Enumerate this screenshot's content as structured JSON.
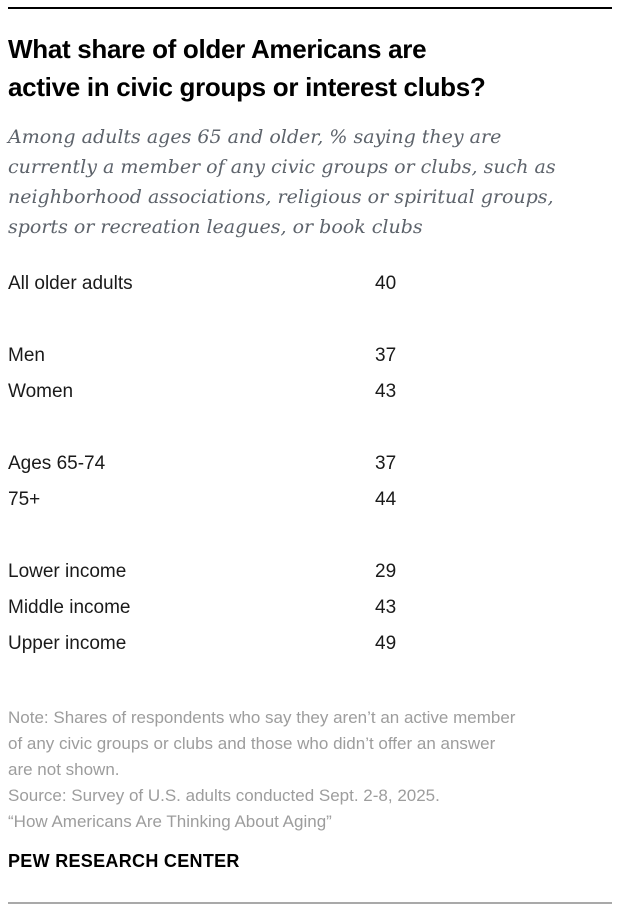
{
  "header": {
    "title_lines": [
      "What share of older Americans are",
      "active in civic groups or interest clubs?"
    ],
    "subtitle_lines": [
      "Among adults ages 65 and older, % saying they are",
      "currently a member of any civic groups or clubs, such as",
      "neighborhood associations, religious or spiritual groups,",
      "sports or recreation leagues, or book clubs"
    ]
  },
  "table": {
    "groups": [
      {
        "rows": [
          {
            "label": "All older adults",
            "value": "40"
          }
        ]
      },
      {
        "rows": [
          {
            "label": "Men",
            "value": "37"
          },
          {
            "label": "Women",
            "value": "43"
          }
        ]
      },
      {
        "rows": [
          {
            "label": "Ages 65-74",
            "value": "37"
          },
          {
            "label": "75+",
            "value": "44"
          }
        ]
      },
      {
        "rows": [
          {
            "label": "Lower income",
            "value": "29"
          },
          {
            "label": "Middle income",
            "value": "43"
          },
          {
            "label": "Upper income",
            "value": "49"
          }
        ]
      }
    ]
  },
  "footer": {
    "note_lines": [
      "Note: Shares of respondents who say they aren’t an active member",
      "of any civic groups or clubs and those who didn’t offer an answer",
      "are not shown.",
      "Source: Survey of U.S. adults conducted Sept. 2-8, 2025.",
      "“How Americans Are Thinking About Aging”"
    ],
    "brand": "PEW RESEARCH CENTER"
  },
  "colors": {
    "title": "#000000",
    "subtitle": "#5d636b",
    "body_text": "#1a1a1a",
    "note_text": "#9d9d9d",
    "top_rule": "#000000",
    "bottom_rule": "#a9a9a9",
    "background": "#ffffff"
  },
  "chart_data": {
    "type": "table",
    "title": "What share of older Americans are active in civic groups or interest clubs?",
    "subtitle": "Among adults ages 65 and older, % saying they are currently a member of any civic groups or clubs, such as neighborhood associations, religious or spiritual groups, sports or recreation leagues, or book clubs",
    "unit": "%",
    "categories": [
      "All older adults",
      "Men",
      "Women",
      "Ages 65-74",
      "75+",
      "Lower income",
      "Middle income",
      "Upper income"
    ],
    "values": [
      40,
      37,
      43,
      37,
      44,
      29,
      43,
      49
    ],
    "groups": [
      [
        "All older adults"
      ],
      [
        "Men",
        "Women"
      ],
      [
        "Ages 65-74",
        "75+"
      ],
      [
        "Lower income",
        "Middle income",
        "Upper income"
      ]
    ],
    "note": "Shares of respondents who say they aren’t an active member of any civic groups or clubs and those who didn’t offer an answer are not shown.",
    "source": "Survey of U.S. adults conducted Sept. 2-8, 2025. “How Americans Are Thinking About Aging”",
    "brand": "PEW RESEARCH CENTER"
  }
}
